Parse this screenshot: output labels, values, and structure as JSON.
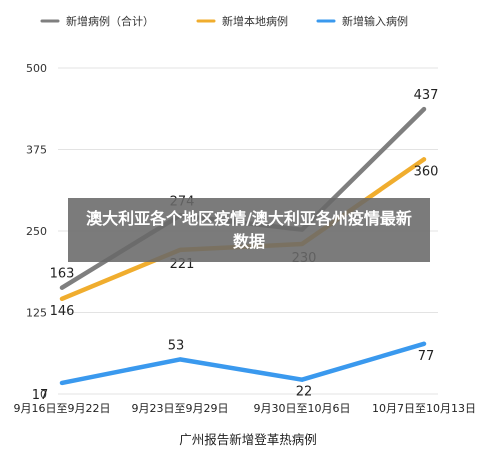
{
  "chart_data": {
    "type": "line",
    "categories": [
      "9月16日至9月22日",
      "9月23日至9月29日",
      "9月30日至10月6日",
      "10月7日至10月13日"
    ],
    "series": [
      {
        "name": "新增病例（合计）",
        "values": [
          163,
          274,
          252,
          437
        ],
        "color": "#7f7f7f"
      },
      {
        "name": "新增本地病例",
        "values": [
          146,
          221,
          230,
          360
        ],
        "color": "#f0ad2e"
      },
      {
        "name": "新增输入病例",
        "values": [
          17,
          53,
          22,
          77
        ],
        "color": "#3a99ee"
      }
    ],
    "data_labels": [
      [
        "163",
        "274",
        "",
        "437"
      ],
      [
        "146",
        "221",
        "230",
        "360"
      ],
      [
        "17",
        "53",
        "22",
        "77"
      ]
    ],
    "ylim": [
      0,
      500
    ],
    "yticks": [
      "0",
      "125",
      "250",
      "375",
      "500"
    ],
    "xlabel": "广州报告新增登革热病例",
    "grid": "horizontal",
    "legend": "top"
  },
  "overlay_text": "澳大利亚各个地区疫情/澳大利亚各州疫情最新数据"
}
